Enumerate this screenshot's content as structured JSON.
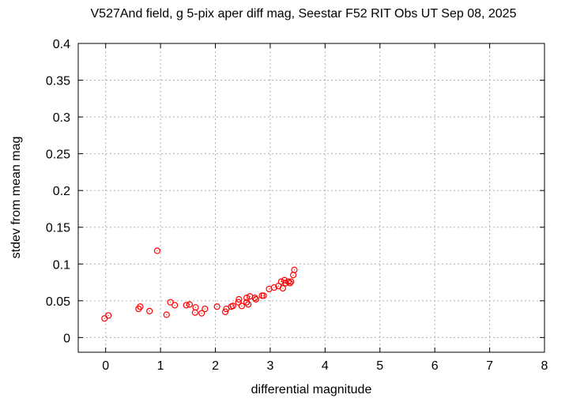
{
  "chart_data": {
    "type": "scatter",
    "title": "V527And field, g 5-pix aper diff mag,  Seestar F52 RIT Obs UT Sep 08, 2025",
    "xlabel": "differential magnitude",
    "ylabel": "stdev from mean mag",
    "xlim": [
      -0.5,
      8
    ],
    "ylim": [
      -0.02,
      0.4
    ],
    "xticks": [
      "0",
      "1",
      "2",
      "3",
      "4",
      "5",
      "6",
      "7",
      "8"
    ],
    "yticks": [
      "0",
      "0.05",
      "0.1",
      "0.15",
      "0.2",
      "0.25",
      "0.3",
      "0.35",
      "0.4"
    ],
    "grid": true,
    "marker_color": "#ff0000",
    "points": [
      [
        -0.02,
        0.026
      ],
      [
        0.05,
        0.03
      ],
      [
        0.6,
        0.039
      ],
      [
        0.63,
        0.042
      ],
      [
        0.8,
        0.036
      ],
      [
        0.94,
        0.118
      ],
      [
        1.11,
        0.031
      ],
      [
        1.18,
        0.048
      ],
      [
        1.26,
        0.044
      ],
      [
        1.47,
        0.044
      ],
      [
        1.53,
        0.045
      ],
      [
        1.64,
        0.041
      ],
      [
        1.63,
        0.034
      ],
      [
        1.75,
        0.033
      ],
      [
        1.81,
        0.039
      ],
      [
        2.03,
        0.042
      ],
      [
        2.18,
        0.035
      ],
      [
        2.2,
        0.039
      ],
      [
        2.29,
        0.042
      ],
      [
        2.32,
        0.043
      ],
      [
        2.43,
        0.052
      ],
      [
        2.42,
        0.048
      ],
      [
        2.48,
        0.043
      ],
      [
        2.57,
        0.054
      ],
      [
        2.6,
        0.045
      ],
      [
        2.57,
        0.048
      ],
      [
        2.63,
        0.056
      ],
      [
        2.72,
        0.054
      ],
      [
        2.74,
        0.052
      ],
      [
        2.85,
        0.057
      ],
      [
        2.88,
        0.057
      ],
      [
        2.98,
        0.066
      ],
      [
        3.07,
        0.068
      ],
      [
        3.15,
        0.07
      ],
      [
        3.23,
        0.067
      ],
      [
        3.2,
        0.076
      ],
      [
        3.26,
        0.078
      ],
      [
        3.28,
        0.074
      ],
      [
        3.33,
        0.076
      ],
      [
        3.38,
        0.076
      ],
      [
        3.36,
        0.074
      ],
      [
        3.42,
        0.085
      ],
      [
        3.44,
        0.092
      ]
    ]
  }
}
